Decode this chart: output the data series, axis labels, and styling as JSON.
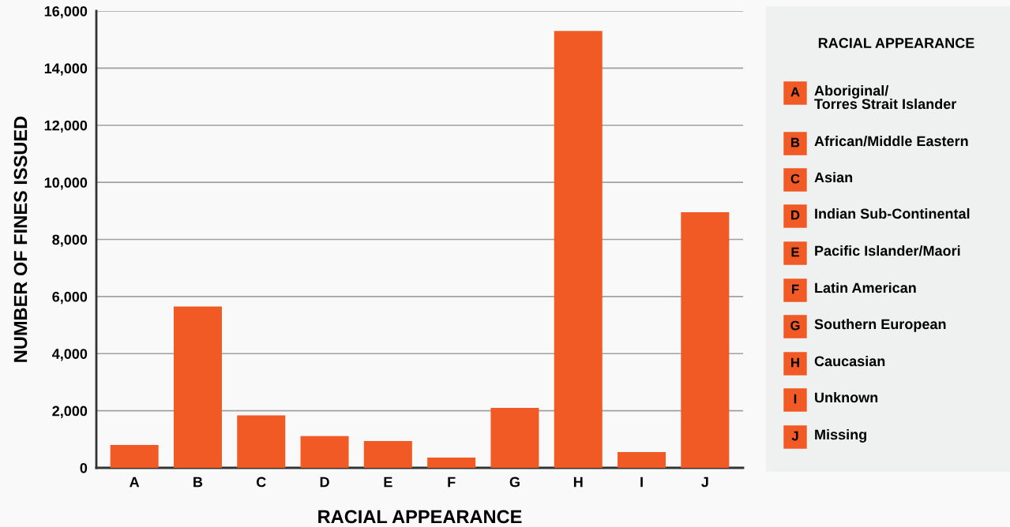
{
  "chart_data": {
    "type": "bar",
    "xlabel": "RACIAL APPEARANCE",
    "ylabel": "NUMBER OF FINES ISSUED",
    "legend_title": "RACIAL APPEARANCE",
    "categories": [
      "A",
      "B",
      "C",
      "D",
      "E",
      "F",
      "G",
      "H",
      "I",
      "J"
    ],
    "values": [
      800,
      5650,
      1840,
      1110,
      940,
      360,
      2100,
      15300,
      550,
      8950
    ],
    "color": "#f15a24",
    "ylim": [
      0,
      16000
    ],
    "yticks": [
      {
        "value": 0,
        "label": "0"
      },
      {
        "value": 2000,
        "label": "2,000"
      },
      {
        "value": 4000,
        "label": "4,000"
      },
      {
        "value": 6000,
        "label": "6,000"
      },
      {
        "value": 8000,
        "label": "8,000"
      },
      {
        "value": 10000,
        "label": "10,000"
      },
      {
        "value": 12000,
        "label": "12,000"
      },
      {
        "value": 14000,
        "label": "14,000"
      },
      {
        "value": 16000,
        "label": "16,000"
      }
    ],
    "grid": "y",
    "annotations": [
      "Aboriginal/\nTorres Strait Islander",
      "African/Middle Eastern",
      "Asian",
      "Indian Sub-Continental",
      "Pacific Islander/Maori",
      "Latin American",
      "Southern European",
      "Caucasian",
      "Unknown",
      "Missing"
    ]
  }
}
